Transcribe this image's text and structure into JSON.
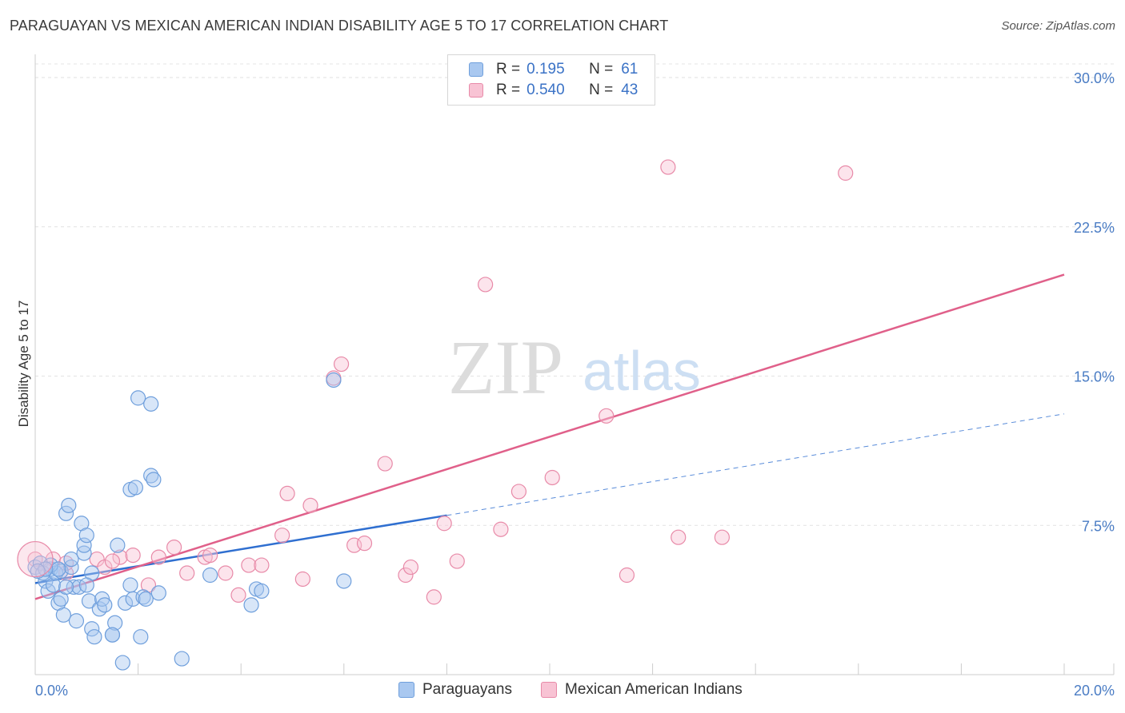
{
  "title": "PARAGUAYAN VS MEXICAN AMERICAN INDIAN DISABILITY AGE 5 TO 17 CORRELATION CHART",
  "source": "Source: ZipAtlas.com",
  "watermark": {
    "zip": "ZIP",
    "atlas": "atlas"
  },
  "legend": {
    "r_label": "R =",
    "n_label": "N =",
    "rows": [
      {
        "r": "0.195",
        "n": "61",
        "color": "#a9c8f0",
        "border": "#6f9fdc"
      },
      {
        "r": "0.540",
        "n": "43",
        "color": "#f8c3d4",
        "border": "#e88aa8"
      }
    ]
  },
  "bottom_legend": [
    {
      "label": "Paraguayans",
      "color": "#a9c8f0",
      "border": "#6f9fdc"
    },
    {
      "label": "Mexican American Indians",
      "color": "#f8c3d4",
      "border": "#e88aa8"
    }
  ],
  "chart_data": {
    "type": "scatter",
    "title": "PARAGUAYAN VS MEXICAN AMERICAN INDIAN DISABILITY AGE 5 TO 17 CORRELATION CHART",
    "xlabel": "",
    "ylabel": "Disability Age 5 to 17",
    "xlim": [
      0,
      20
    ],
    "ylim": [
      0,
      30
    ],
    "x_tick_labels": [
      {
        "value": 0,
        "label": "0.0%"
      },
      {
        "value": 20,
        "label": "20.0%"
      }
    ],
    "y_tick_labels": [
      {
        "value": 7.5,
        "label": "7.5%"
      },
      {
        "value": 15,
        "label": "15.0%"
      },
      {
        "value": 22.5,
        "label": "22.5%"
      },
      {
        "value": 30,
        "label": "30.0%"
      }
    ],
    "grid": true,
    "series": [
      {
        "name": "Paraguayans",
        "color": "#6f9fdc",
        "fill": "#a9c8f0",
        "trend": {
          "x0": 0,
          "y0": 4.6,
          "x1": 8,
          "y1": 8.0,
          "dashed_to_x": 20,
          "dashed_to_y": 13.1,
          "color": "#2f6fd0"
        },
        "points": [
          [
            0.0,
            5.4
          ],
          [
            0.1,
            5.6
          ],
          [
            0.2,
            4.7
          ],
          [
            0.25,
            4.2
          ],
          [
            0.3,
            5.3
          ],
          [
            0.35,
            4.5
          ],
          [
            0.4,
            5.1
          ],
          [
            0.45,
            3.6
          ],
          [
            0.5,
            5.2
          ],
          [
            0.55,
            3.0
          ],
          [
            0.5,
            3.8
          ],
          [
            0.6,
            8.1
          ],
          [
            0.65,
            8.5
          ],
          [
            0.7,
            5.4
          ],
          [
            0.7,
            5.8
          ],
          [
            0.75,
            4.4
          ],
          [
            0.8,
            2.7
          ],
          [
            0.85,
            4.4
          ],
          [
            0.9,
            7.6
          ],
          [
            0.95,
            6.1
          ],
          [
            0.95,
            6.5
          ],
          [
            1.0,
            7.0
          ],
          [
            1.05,
            3.7
          ],
          [
            1.1,
            2.3
          ],
          [
            1.1,
            5.1
          ],
          [
            1.15,
            1.9
          ],
          [
            1.25,
            3.3
          ],
          [
            1.3,
            3.8
          ],
          [
            1.35,
            3.5
          ],
          [
            1.5,
            2.0
          ],
          [
            1.55,
            2.6
          ],
          [
            1.5,
            2.0
          ],
          [
            1.6,
            6.5
          ],
          [
            1.7,
            0.6
          ],
          [
            1.75,
            3.6
          ],
          [
            1.85,
            4.5
          ],
          [
            1.85,
            9.3
          ],
          [
            1.9,
            3.8
          ],
          [
            1.95,
            9.4
          ],
          [
            2.0,
            13.9
          ],
          [
            2.05,
            1.9
          ],
          [
            2.1,
            3.9
          ],
          [
            2.15,
            3.8
          ],
          [
            2.25,
            10.0
          ],
          [
            2.3,
            9.8
          ],
          [
            2.4,
            4.1
          ],
          [
            2.25,
            13.6
          ],
          [
            2.85,
            0.8
          ],
          [
            3.4,
            5.0
          ],
          [
            4.2,
            3.5
          ],
          [
            4.3,
            4.3
          ],
          [
            4.4,
            4.2
          ],
          [
            5.8,
            14.8
          ],
          [
            6.0,
            4.7
          ],
          [
            0.15,
            5.1
          ],
          [
            0.3,
            5.5
          ],
          [
            0.6,
            4.4
          ],
          [
            1.0,
            4.5
          ],
          [
            0.45,
            5.3
          ],
          [
            0.2,
            5.3
          ],
          [
            0.05,
            5.2
          ]
        ]
      },
      {
        "name": "Mexican American Indians",
        "color": "#e88aa8",
        "fill": "#f8c3d4",
        "trend": {
          "x0": 0,
          "y0": 3.8,
          "x1": 20,
          "y1": 20.1,
          "color": "#e0608a"
        },
        "points": [
          [
            0.0,
            5.8
          ],
          [
            0.35,
            5.8
          ],
          [
            0.6,
            5.1
          ],
          [
            1.2,
            5.8
          ],
          [
            1.35,
            5.4
          ],
          [
            1.65,
            5.9
          ],
          [
            1.9,
            6.0
          ],
          [
            2.2,
            4.5
          ],
          [
            2.4,
            5.9
          ],
          [
            2.7,
            6.4
          ],
          [
            2.95,
            5.1
          ],
          [
            3.3,
            5.9
          ],
          [
            3.4,
            6.0
          ],
          [
            3.7,
            5.1
          ],
          [
            3.95,
            4.0
          ],
          [
            4.15,
            5.5
          ],
          [
            4.4,
            5.5
          ],
          [
            4.8,
            7.0
          ],
          [
            4.9,
            9.1
          ],
          [
            5.2,
            4.8
          ],
          [
            5.35,
            8.5
          ],
          [
            5.8,
            14.9
          ],
          [
            5.95,
            15.6
          ],
          [
            6.2,
            6.5
          ],
          [
            6.4,
            6.6
          ],
          [
            6.8,
            10.6
          ],
          [
            7.2,
            5.0
          ],
          [
            7.3,
            5.4
          ],
          [
            7.75,
            3.9
          ],
          [
            7.95,
            7.6
          ],
          [
            8.2,
            5.7
          ],
          [
            8.75,
            19.6
          ],
          [
            9.05,
            7.3
          ],
          [
            9.4,
            9.2
          ],
          [
            10.05,
            9.9
          ],
          [
            11.1,
            13.0
          ],
          [
            11.5,
            5.0
          ],
          [
            12.3,
            25.5
          ],
          [
            12.5,
            6.9
          ],
          [
            13.35,
            6.9
          ],
          [
            15.75,
            25.2
          ],
          [
            0.6,
            5.6
          ],
          [
            1.5,
            5.7
          ]
        ]
      }
    ]
  }
}
